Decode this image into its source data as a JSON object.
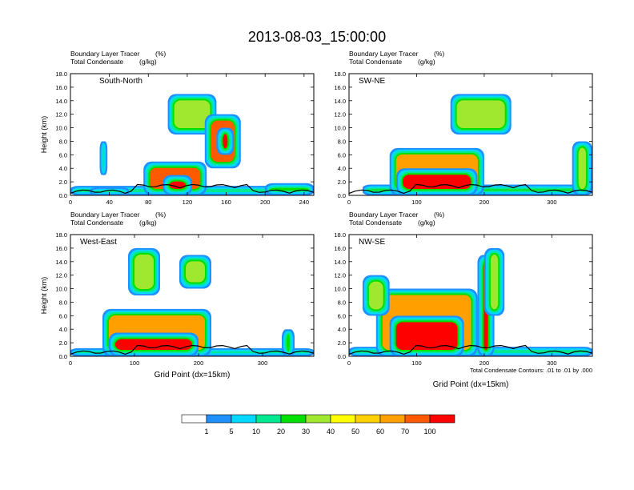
{
  "figure": {
    "title": "2013-08-03_15:00:00",
    "footnote": "Total Condensate Contours: .01 to .01 by .000"
  },
  "chart_data": [
    {
      "type": "heatmap",
      "panel": "South-North",
      "subtitle_left_1": "Boundary Layer Tracer",
      "subtitle_unit_1": "(%)",
      "subtitle_left_2": "Total Condensate",
      "subtitle_unit_2": "(g/kg)",
      "ylabel": "Height (km)",
      "xlabel": "",
      "xlim": [
        0,
        250
      ],
      "ylim": [
        0,
        18
      ],
      "x_ticks": [
        0,
        40,
        80,
        120,
        160,
        200,
        240
      ],
      "y_ticks": [
        "0.0",
        "2.0",
        "4.0",
        "6.0",
        "8.0",
        "10.0",
        "12.0",
        "14.0",
        "16.0",
        "18.0"
      ],
      "cloud_blobs": [
        {
          "x": [
            0,
            250
          ],
          "y": [
            0,
            1.4
          ],
          "level": 70
        },
        {
          "x": [
            20,
            60
          ],
          "y": [
            0,
            1.2
          ],
          "level": 100
        },
        {
          "x": [
            75,
            140
          ],
          "y": [
            0,
            5
          ],
          "level": 70
        },
        {
          "x": [
            95,
            125
          ],
          "y": [
            0,
            3
          ],
          "level": 100
        },
        {
          "x": [
            30,
            38
          ],
          "y": [
            3,
            8
          ],
          "level": 30
        },
        {
          "x": [
            100,
            150
          ],
          "y": [
            9,
            15
          ],
          "level": 30
        },
        {
          "x": [
            138,
            175
          ],
          "y": [
            4,
            12
          ],
          "level": 70
        },
        {
          "x": [
            150,
            168
          ],
          "y": [
            6,
            10
          ],
          "level": 100
        },
        {
          "x": [
            200,
            250
          ],
          "y": [
            0,
            1.8
          ],
          "level": 70
        }
      ]
    },
    {
      "type": "heatmap",
      "panel": "SW-NE",
      "subtitle_left_1": "Boundary Layer Tracer",
      "subtitle_unit_1": "(%)",
      "subtitle_left_2": "Total Condensate",
      "subtitle_unit_2": "(g/kg)",
      "ylabel": "",
      "xlabel": "",
      "xlim": [
        0,
        360
      ],
      "ylim": [
        0,
        18
      ],
      "x_ticks": [
        0,
        100,
        200,
        300
      ],
      "y_ticks": [
        "0.0",
        "2.0",
        "4.0",
        "6.0",
        "8.0",
        "10.0",
        "12.0",
        "14.0",
        "16.0",
        "18.0"
      ],
      "cloud_blobs": [
        {
          "x": [
            20,
            360
          ],
          "y": [
            0,
            1.6
          ],
          "level": 70
        },
        {
          "x": [
            60,
            200
          ],
          "y": [
            0,
            7
          ],
          "level": 60
        },
        {
          "x": [
            70,
            190
          ],
          "y": [
            0,
            4
          ],
          "level": 100
        },
        {
          "x": [
            150,
            240
          ],
          "y": [
            9,
            15
          ],
          "level": 30
        },
        {
          "x": [
            330,
            360
          ],
          "y": [
            0,
            8
          ],
          "level": 30
        }
      ]
    },
    {
      "type": "heatmap",
      "panel": "West-East",
      "subtitle_left_1": "Boundary Layer Tracer",
      "subtitle_unit_1": "(%)",
      "subtitle_left_2": "Total Condensate",
      "subtitle_unit_2": "(g/kg)",
      "ylabel": "Height (km)",
      "xlabel": "Grid Point (dx=15km)",
      "xlim": [
        0,
        380
      ],
      "ylim": [
        0,
        18
      ],
      "x_ticks": [
        0,
        100,
        200,
        300
      ],
      "y_ticks": [
        "0.0",
        "2.0",
        "4.0",
        "6.0",
        "8.0",
        "10.0",
        "12.0",
        "14.0",
        "16.0",
        "18.0"
      ],
      "cloud_blobs": [
        {
          "x": [
            0,
            380
          ],
          "y": [
            0,
            1.2
          ],
          "level": 70
        },
        {
          "x": [
            50,
            220
          ],
          "y": [
            0,
            7
          ],
          "level": 60
        },
        {
          "x": [
            60,
            200
          ],
          "y": [
            0,
            3.5
          ],
          "level": 100
        },
        {
          "x": [
            90,
            140
          ],
          "y": [
            9,
            16
          ],
          "level": 30
        },
        {
          "x": [
            170,
            220
          ],
          "y": [
            10,
            15
          ],
          "level": 30
        },
        {
          "x": [
            330,
            350
          ],
          "y": [
            0,
            4
          ],
          "level": 30
        }
      ]
    },
    {
      "type": "heatmap",
      "panel": "NW-SE",
      "subtitle_left_1": "Boundary Layer Tracer",
      "subtitle_unit_1": "(%)",
      "subtitle_left_2": "Total Condensate",
      "subtitle_unit_2": "(g/kg)",
      "ylabel": "",
      "xlabel": "Grid Point (dx=15km)",
      "xlim": [
        0,
        360
      ],
      "ylim": [
        0,
        18
      ],
      "x_ticks": [
        0,
        100,
        200,
        300
      ],
      "y_ticks": [
        "0.0",
        "2.0",
        "4.0",
        "6.0",
        "8.0",
        "10.0",
        "12.0",
        "14.0",
        "16.0",
        "18.0"
      ],
      "cloud_blobs": [
        {
          "x": [
            0,
            360
          ],
          "y": [
            0,
            1.4
          ],
          "level": 70
        },
        {
          "x": [
            40,
            190
          ],
          "y": [
            0,
            10
          ],
          "level": 60
        },
        {
          "x": [
            60,
            170
          ],
          "y": [
            0,
            6
          ],
          "level": 100
        },
        {
          "x": [
            190,
            215
          ],
          "y": [
            0,
            15
          ],
          "level": 100
        },
        {
          "x": [
            200,
            230
          ],
          "y": [
            6,
            16
          ],
          "level": 30
        },
        {
          "x": [
            20,
            60
          ],
          "y": [
            6,
            12
          ],
          "level": 30
        }
      ]
    }
  ],
  "colorbar": {
    "labels": [
      "1",
      "5",
      "10",
      "20",
      "30",
      "40",
      "50",
      "60",
      "70",
      "100"
    ],
    "colors": [
      "#ffffff",
      "#1e90ff",
      "#00d8ff",
      "#00e890",
      "#00e000",
      "#a0e830",
      "#ffff00",
      "#ffd000",
      "#ffa000",
      "#ff5a00",
      "#ff0000"
    ]
  }
}
